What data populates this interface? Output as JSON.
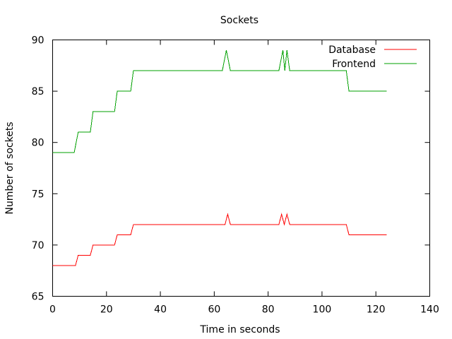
{
  "chart_data": {
    "type": "line",
    "title": "Sockets",
    "xlabel": "Time in seconds",
    "ylabel": "Number of sockets",
    "xlim": [
      0,
      140
    ],
    "ylim": [
      65,
      90
    ],
    "xticks": [
      0,
      20,
      40,
      60,
      80,
      100,
      120,
      140
    ],
    "yticks": [
      65,
      70,
      75,
      80,
      85,
      90
    ],
    "grid": false,
    "legend_position": "top-right",
    "series": [
      {
        "name": "Database",
        "color": "#ff0000",
        "points": [
          [
            0,
            68
          ],
          [
            8.5,
            68
          ],
          [
            9.5,
            69
          ],
          [
            14,
            69
          ],
          [
            15,
            70
          ],
          [
            23,
            70
          ],
          [
            24,
            71
          ],
          [
            29,
            71
          ],
          [
            30,
            72
          ],
          [
            64,
            72
          ],
          [
            65,
            73
          ],
          [
            66,
            72
          ],
          [
            84,
            72
          ],
          [
            85,
            73
          ],
          [
            86,
            72
          ],
          [
            87,
            73
          ],
          [
            88,
            72
          ],
          [
            109,
            72
          ],
          [
            110,
            71
          ],
          [
            124,
            71
          ]
        ]
      },
      {
        "name": "Frontend",
        "color": "#00a000",
        "points": [
          [
            0,
            79
          ],
          [
            8,
            79
          ],
          [
            9.5,
            81
          ],
          [
            14,
            81
          ],
          [
            15,
            83
          ],
          [
            23,
            83
          ],
          [
            24,
            85
          ],
          [
            29,
            85
          ],
          [
            30,
            87
          ],
          [
            63,
            87
          ],
          [
            64.5,
            89
          ],
          [
            66,
            87
          ],
          [
            84,
            87
          ],
          [
            85.5,
            89
          ],
          [
            86.2,
            87
          ],
          [
            87,
            89
          ],
          [
            88,
            87
          ],
          [
            109,
            87
          ],
          [
            110,
            85
          ],
          [
            124,
            85
          ]
        ]
      }
    ]
  }
}
